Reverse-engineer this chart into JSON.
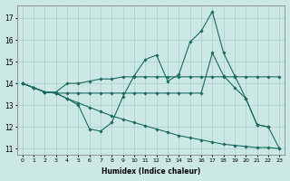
{
  "xlabel": "Humidex (Indice chaleur)",
  "x_labels": [
    "0",
    "1",
    "2",
    "3",
    "4",
    "5",
    "6",
    "7",
    "8",
    "9",
    "10",
    "11",
    "12",
    "13",
    "14",
    "15",
    "16",
    "17",
    "18",
    "19",
    "20",
    "21",
    "22",
    "23"
  ],
  "xlim": [
    -0.5,
    23.5
  ],
  "ylim": [
    10.7,
    17.6
  ],
  "yticks": [
    11,
    12,
    13,
    14,
    15,
    16,
    17
  ],
  "background_color": "#cce8e5",
  "grid_color": "#aacfcc",
  "line_color": "#1a6b60",
  "lines": [
    {
      "x": [
        0,
        1,
        2,
        3,
        4,
        5,
        6,
        7,
        8,
        9,
        10,
        11,
        12,
        13,
        14,
        15,
        16,
        17,
        18,
        19,
        20,
        21,
        22,
        23
      ],
      "y": [
        14.0,
        13.8,
        13.6,
        13.6,
        14.0,
        14.0,
        14.1,
        14.2,
        14.2,
        14.3,
        14.3,
        14.3,
        14.3,
        14.3,
        14.3,
        14.3,
        14.3,
        14.3,
        14.3,
        14.3,
        14.3,
        14.3,
        14.3,
        14.3
      ]
    },
    {
      "x": [
        0,
        1,
        2,
        3,
        4,
        5,
        6,
        7,
        8,
        9,
        10,
        11,
        12,
        13,
        14,
        15,
        16,
        17,
        18,
        19,
        20,
        21,
        22
      ],
      "y": [
        14.0,
        13.8,
        13.6,
        13.55,
        13.3,
        13.0,
        11.9,
        11.8,
        12.2,
        13.4,
        14.35,
        15.1,
        15.3,
        14.1,
        14.4,
        15.9,
        16.4,
        17.3,
        15.4,
        14.35,
        13.3,
        12.1,
        12.0
      ]
    },
    {
      "x": [
        0,
        1,
        2,
        3,
        4,
        5,
        6,
        7,
        8,
        9,
        10,
        11,
        12,
        13,
        14,
        15,
        16,
        17,
        18,
        19,
        20,
        21,
        22,
        23
      ],
      "y": [
        14.0,
        13.8,
        13.6,
        13.55,
        13.55,
        13.55,
        13.55,
        13.55,
        13.55,
        13.55,
        13.55,
        13.55,
        13.55,
        13.55,
        13.55,
        13.55,
        13.55,
        15.4,
        14.35,
        13.8,
        13.3,
        12.1,
        12.0,
        11.0
      ]
    },
    {
      "x": [
        0,
        1,
        2,
        3,
        4,
        5,
        6,
        7,
        8,
        9,
        10,
        11,
        12,
        13,
        14,
        15,
        16,
        17,
        18,
        19,
        20,
        21,
        22,
        23
      ],
      "y": [
        14.0,
        13.8,
        13.6,
        13.55,
        13.3,
        13.1,
        12.9,
        12.7,
        12.5,
        12.35,
        12.2,
        12.05,
        11.9,
        11.75,
        11.6,
        11.5,
        11.4,
        11.3,
        11.2,
        11.15,
        11.1,
        11.05,
        11.05,
        11.0
      ]
    }
  ]
}
